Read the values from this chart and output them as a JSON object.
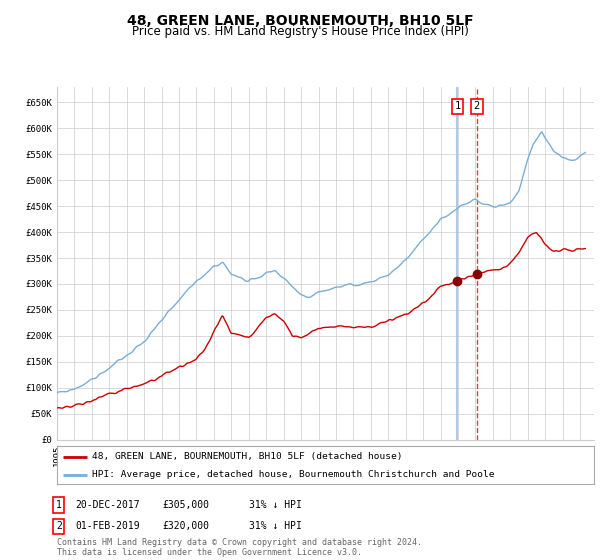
{
  "title": "48, GREEN LANE, BOURNEMOUTH, BH10 5LF",
  "subtitle": "Price paid vs. HM Land Registry's House Price Index (HPI)",
  "title_fontsize": 10,
  "subtitle_fontsize": 8.5,
  "ylabel_ticks": [
    "£0",
    "£50K",
    "£100K",
    "£150K",
    "£200K",
    "£250K",
    "£300K",
    "£350K",
    "£400K",
    "£450K",
    "£500K",
    "£550K",
    "£600K",
    "£650K"
  ],
  "ytick_values": [
    0,
    50000,
    100000,
    150000,
    200000,
    250000,
    300000,
    350000,
    400000,
    450000,
    500000,
    550000,
    600000,
    650000
  ],
  "ylim": [
    0,
    680000
  ],
  "xlim_start": 1995.0,
  "xlim_end": 2025.8,
  "hpi_color": "#7aaed6",
  "price_color": "#cc0000",
  "marker_color": "#880000",
  "grid_color": "#cccccc",
  "bg_color": "#ffffff",
  "sale1_date": 2017.97,
  "sale1_price": 305000,
  "sale2_date": 2019.08,
  "sale2_price": 320000,
  "vline1_color": "#aac4e0",
  "vline2_color": "#cc3333",
  "legend_label_red": "48, GREEN LANE, BOURNEMOUTH, BH10 5LF (detached house)",
  "legend_label_blue": "HPI: Average price, detached house, Bournemouth Christchurch and Poole",
  "table_row1": [
    "1",
    "20-DEC-2017",
    "£305,000",
    "31% ↓ HPI"
  ],
  "table_row2": [
    "2",
    "01-FEB-2019",
    "£320,000",
    "31% ↓ HPI"
  ],
  "footer_text": "Contains HM Land Registry data © Crown copyright and database right 2024.\nThis data is licensed under the Open Government Licence v3.0.",
  "tick_fontsize": 6.5,
  "footer_fontsize": 6
}
